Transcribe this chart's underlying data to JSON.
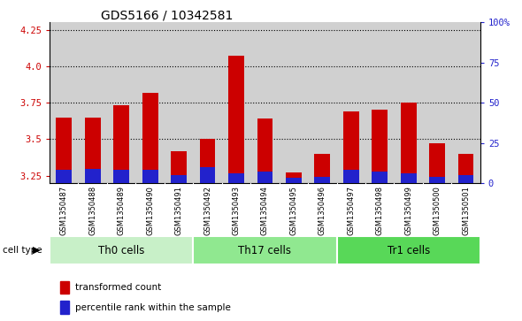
{
  "title": "GDS5166 / 10342581",
  "samples": [
    "GSM1350487",
    "GSM1350488",
    "GSM1350489",
    "GSM1350490",
    "GSM1350491",
    "GSM1350492",
    "GSM1350493",
    "GSM1350494",
    "GSM1350495",
    "GSM1350496",
    "GSM1350497",
    "GSM1350498",
    "GSM1350499",
    "GSM1350500",
    "GSM1350501"
  ],
  "red_values": [
    3.65,
    3.65,
    3.73,
    3.82,
    3.42,
    3.5,
    4.07,
    3.64,
    3.27,
    3.4,
    3.69,
    3.7,
    3.75,
    3.47,
    3.4
  ],
  "blue_percent": [
    8,
    9,
    8,
    8,
    5,
    10,
    6,
    7,
    3,
    4,
    8,
    7,
    6,
    4,
    5
  ],
  "cell_groups": [
    {
      "label": "Th0 cells",
      "start": 0,
      "end": 5,
      "color": "#c8f0c8"
    },
    {
      "label": "Th17 cells",
      "start": 5,
      "end": 10,
      "color": "#90e890"
    },
    {
      "label": "Tr1 cells",
      "start": 10,
      "end": 15,
      "color": "#58d858"
    }
  ],
  "ylim_left": [
    3.2,
    4.3
  ],
  "ylim_right": [
    0,
    100
  ],
  "yticks_left": [
    3.25,
    3.5,
    3.75,
    4.0,
    4.25
  ],
  "yticks_right": [
    0,
    25,
    50,
    75,
    100
  ],
  "ytick_labels_right": [
    "0",
    "25",
    "50",
    "75",
    "100%"
  ],
  "bar_width": 0.55,
  "base": 3.2,
  "bg_color": "#d0d0d0",
  "plot_bg": "#ffffff",
  "red_color": "#cc0000",
  "blue_color": "#2222cc",
  "title_fontsize": 10,
  "tick_fontsize": 7.5,
  "group_fontsize": 8.5
}
